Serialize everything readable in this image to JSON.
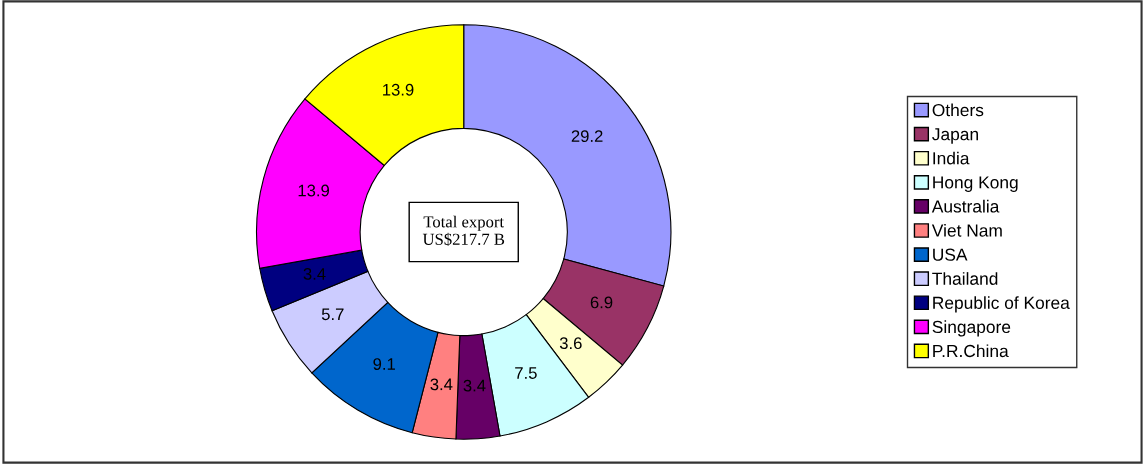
{
  "chart_data": {
    "type": "donut",
    "categories": [
      "Others",
      "Japan",
      "India",
      "Hong Kong",
      "Australia",
      "Viet Nam",
      "USA",
      "Thailand",
      "Republic of Korea",
      "Singapore",
      "P.R.China"
    ],
    "values": [
      29.2,
      6.9,
      3.6,
      7.5,
      3.4,
      3.4,
      9.1,
      5.7,
      3.4,
      13.9,
      13.9
    ],
    "colors": [
      "#9999ff",
      "#993366",
      "#ffffcc",
      "#ccffff",
      "#660066",
      "#ff8080",
      "#0066cc",
      "#ccccff",
      "#000080",
      "#ff00ff",
      "#ffff00"
    ],
    "data_labels": true,
    "legend": "right",
    "annotations": [
      "Total export\nUS$217.7 B"
    ]
  }
}
